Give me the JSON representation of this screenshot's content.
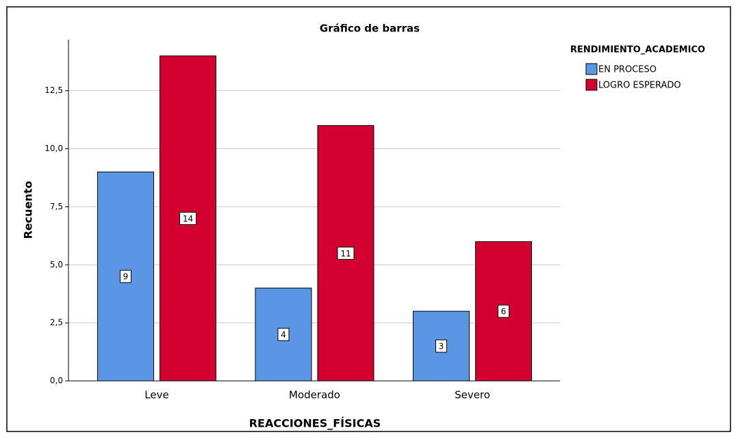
{
  "chart_data": {
    "type": "bar",
    "title": "Gráfico de barras",
    "x_label": "REACCIONES_FÍSICAS",
    "y_label": "Recuento",
    "legend_title": "RENDIMIENTO_ACADEMICO",
    "categories": [
      "Leve",
      "Moderado",
      "Severo"
    ],
    "series": [
      {
        "name": "EN PROCESO",
        "color": "#5a96e4",
        "values": [
          9,
          4,
          3
        ]
      },
      {
        "name": "LOGRO ESPERADO",
        "color": "#d3002f",
        "values": [
          14,
          11,
          6
        ]
      }
    ],
    "ylim": [
      0,
      14.7
    ],
    "yticks": [
      {
        "value": 0,
        "label": "0,0"
      },
      {
        "value": 2.5,
        "label": "2,5"
      },
      {
        "value": 5,
        "label": "5,0"
      },
      {
        "value": 7.5,
        "label": "7,5"
      },
      {
        "value": 10,
        "label": "10,0"
      },
      {
        "value": 12.5,
        "label": "12,5"
      }
    ],
    "grid": true,
    "legend": "top-right"
  }
}
